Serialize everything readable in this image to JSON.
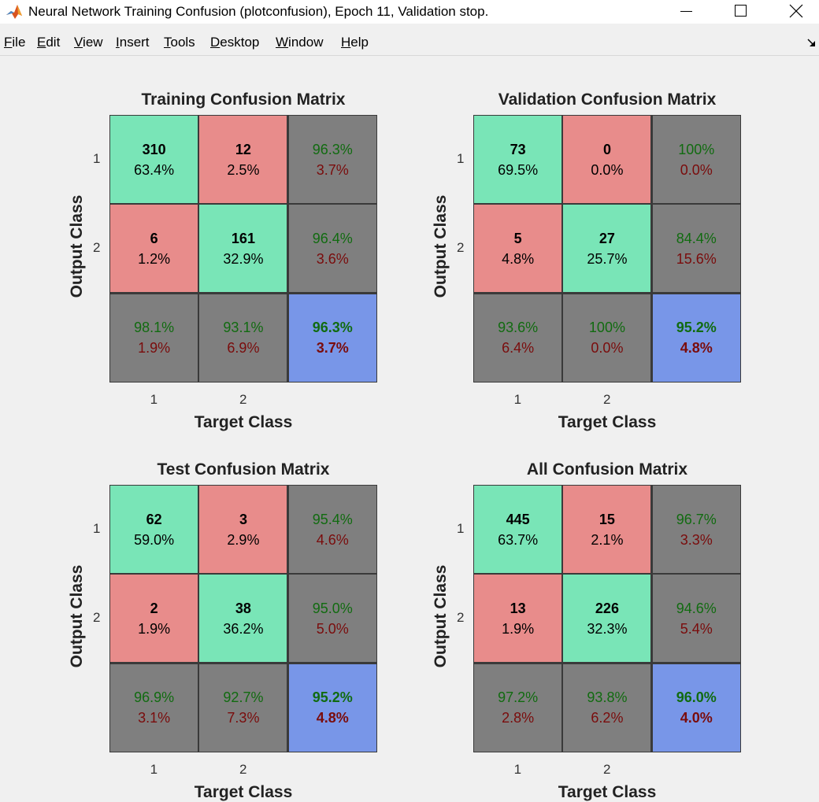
{
  "window": {
    "title": "Neural Network Training Confusion (plotconfusion), Epoch 11, Validation stop.",
    "icon": "matlab-logo-icon",
    "controls": [
      "minimize-icon",
      "maximize-icon",
      "close-icon"
    ]
  },
  "menu": {
    "items": [
      {
        "accel": "F",
        "rest": "ile"
      },
      {
        "accel": "E",
        "rest": "dit"
      },
      {
        "accel": "V",
        "rest": "iew"
      },
      {
        "accel": "I",
        "rest": "nsert"
      },
      {
        "accel": "T",
        "rest": "ools"
      },
      {
        "accel": "D",
        "rest": "esktop"
      },
      {
        "accel": "W",
        "rest": "indow"
      },
      {
        "accel": "H",
        "rest": "elp"
      }
    ]
  },
  "colors": {
    "correct": "#79e5b7",
    "incorrect": "#e88c8b",
    "summary": "#7f7f7f",
    "overall": "#7896e8",
    "good_text": "#116b10",
    "bad_text": "#7a0c0c"
  },
  "chart_data": [
    {
      "type": "table",
      "title": "Training Confusion Matrix",
      "xlabel": "Target Class",
      "ylabel": "Output Class",
      "classes": [
        "1",
        "2"
      ],
      "cells": [
        [
          {
            "count": "310",
            "pct": "63.4%"
          },
          {
            "count": "12",
            "pct": "2.5%"
          }
        ],
        [
          {
            "count": "6",
            "pct": "1.2%"
          },
          {
            "count": "161",
            "pct": "32.9%"
          }
        ]
      ],
      "row_summary": [
        [
          "96.3%",
          "3.7%"
        ],
        [
          "96.4%",
          "3.6%"
        ]
      ],
      "col_summary": [
        [
          "98.1%",
          "1.9%"
        ],
        [
          "93.1%",
          "6.9%"
        ]
      ],
      "overall": [
        "96.3%",
        "3.7%"
      ]
    },
    {
      "type": "table",
      "title": "Validation Confusion Matrix",
      "xlabel": "Target Class",
      "ylabel": "Output Class",
      "classes": [
        "1",
        "2"
      ],
      "cells": [
        [
          {
            "count": "73",
            "pct": "69.5%"
          },
          {
            "count": "0",
            "pct": "0.0%"
          }
        ],
        [
          {
            "count": "5",
            "pct": "4.8%"
          },
          {
            "count": "27",
            "pct": "25.7%"
          }
        ]
      ],
      "row_summary": [
        [
          "100%",
          "0.0%"
        ],
        [
          "84.4%",
          "15.6%"
        ]
      ],
      "col_summary": [
        [
          "93.6%",
          "6.4%"
        ],
        [
          "100%",
          "0.0%"
        ]
      ],
      "overall": [
        "95.2%",
        "4.8%"
      ]
    },
    {
      "type": "table",
      "title": "Test Confusion Matrix",
      "xlabel": "Target Class",
      "ylabel": "Output Class",
      "classes": [
        "1",
        "2"
      ],
      "cells": [
        [
          {
            "count": "62",
            "pct": "59.0%"
          },
          {
            "count": "3",
            "pct": "2.9%"
          }
        ],
        [
          {
            "count": "2",
            "pct": "1.9%"
          },
          {
            "count": "38",
            "pct": "36.2%"
          }
        ]
      ],
      "row_summary": [
        [
          "95.4%",
          "4.6%"
        ],
        [
          "95.0%",
          "5.0%"
        ]
      ],
      "col_summary": [
        [
          "96.9%",
          "3.1%"
        ],
        [
          "92.7%",
          "7.3%"
        ]
      ],
      "overall": [
        "95.2%",
        "4.8%"
      ]
    },
    {
      "type": "table",
      "title": "All Confusion Matrix",
      "xlabel": "Target Class",
      "ylabel": "Output Class",
      "classes": [
        "1",
        "2"
      ],
      "cells": [
        [
          {
            "count": "445",
            "pct": "63.7%"
          },
          {
            "count": "15",
            "pct": "2.1%"
          }
        ],
        [
          {
            "count": "13",
            "pct": "1.9%"
          },
          {
            "count": "226",
            "pct": "32.3%"
          }
        ]
      ],
      "row_summary": [
        [
          "96.7%",
          "3.3%"
        ],
        [
          "94.6%",
          "5.4%"
        ]
      ],
      "col_summary": [
        [
          "97.2%",
          "2.8%"
        ],
        [
          "93.8%",
          "6.2%"
        ]
      ],
      "overall": [
        "96.0%",
        "4.0%"
      ]
    }
  ]
}
